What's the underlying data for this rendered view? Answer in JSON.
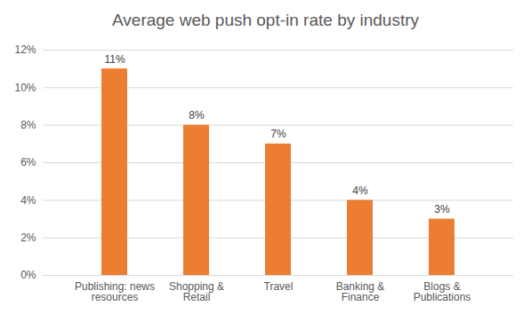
{
  "chart_data": {
    "type": "bar",
    "title": "Average web push opt-in rate by industry",
    "categories": [
      "Publishing: news resources",
      "Shopping & Retail",
      "Travel",
      "Banking & Finance",
      "Blogs & Publications"
    ],
    "values": [
      11,
      8,
      7,
      4,
      3
    ],
    "value_labels": [
      "11%",
      "8%",
      "7%",
      "4%",
      "3%"
    ],
    "color": "#ed7d31",
    "ylim": [
      0,
      12
    ],
    "yticks": [
      {
        "value": 0,
        "label": "0%"
      },
      {
        "value": 2,
        "label": "2%"
      },
      {
        "value": 4,
        "label": "4%"
      },
      {
        "value": 6,
        "label": "6%"
      },
      {
        "value": 8,
        "label": "8%"
      },
      {
        "value": 10,
        "label": "10%"
      },
      {
        "value": 12,
        "label": "12%"
      }
    ],
    "grid": true,
    "data_labels": true
  }
}
